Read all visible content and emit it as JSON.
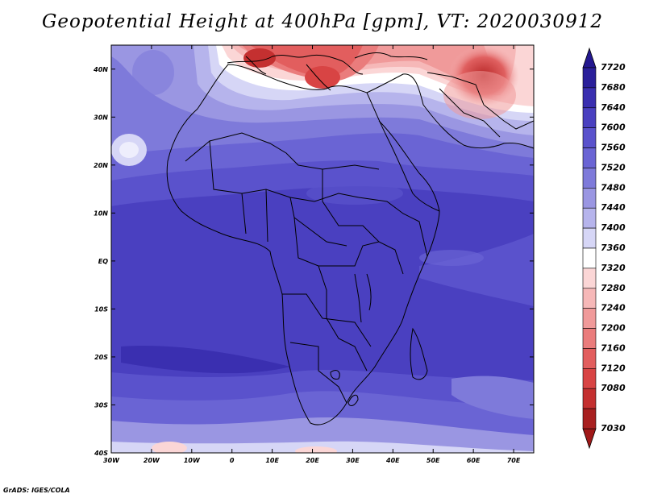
{
  "title": "Geopotential Height at 400hPa [gpm], VT: 2020030912",
  "footer": "GrADS: IGES/COLA",
  "map": {
    "lon_range": [
      -30,
      75
    ],
    "lat_range": [
      -40,
      45
    ],
    "lat_ticks": [
      {
        "value": 40,
        "label": "40N"
      },
      {
        "value": 30,
        "label": "30N"
      },
      {
        "value": 20,
        "label": "20N"
      },
      {
        "value": 10,
        "label": "10N"
      },
      {
        "value": 0,
        "label": "EQ"
      },
      {
        "value": -10,
        "label": "10S"
      },
      {
        "value": -20,
        "label": "20S"
      },
      {
        "value": -30,
        "label": "30S"
      },
      {
        "value": -40,
        "label": "40S"
      }
    ],
    "lon_ticks": [
      {
        "value": -30,
        "label": "30W"
      },
      {
        "value": -20,
        "label": "20W"
      },
      {
        "value": -10,
        "label": "10W"
      },
      {
        "value": 0,
        "label": "0"
      },
      {
        "value": 10,
        "label": "10E"
      },
      {
        "value": 20,
        "label": "20E"
      },
      {
        "value": 30,
        "label": "30E"
      },
      {
        "value": 40,
        "label": "40E"
      },
      {
        "value": 50,
        "label": "50E"
      },
      {
        "value": 60,
        "label": "60E"
      },
      {
        "value": 70,
        "label": "70E"
      }
    ]
  },
  "colorbar": {
    "levels": [
      {
        "label": "7720",
        "color": "#2a1f9a"
      },
      {
        "label": "7680",
        "color": "#3a2fb0"
      },
      {
        "label": "7640",
        "color": "#4a40c0"
      },
      {
        "label": "7600",
        "color": "#5a52cc"
      },
      {
        "label": "7560",
        "color": "#6a64d4"
      },
      {
        "label": "7520",
        "color": "#7e7ada"
      },
      {
        "label": "7480",
        "color": "#9a96e2"
      },
      {
        "label": "7440",
        "color": "#b6b4ec"
      },
      {
        "label": "7400",
        "color": "#d6d6f6"
      },
      {
        "label": "7360",
        "color": "#ffffff"
      },
      {
        "label": "7320",
        "color": "#fbd6d6"
      },
      {
        "label": "7280",
        "color": "#f6b8b8"
      },
      {
        "label": "7240",
        "color": "#f09a9a"
      },
      {
        "label": "7200",
        "color": "#ea7c7c"
      },
      {
        "label": "7160",
        "color": "#e25e5e"
      },
      {
        "label": "7120",
        "color": "#d84444"
      },
      {
        "label": "7080",
        "color": "#c43030"
      },
      {
        "label": "7030",
        "color": "#a82020"
      }
    ],
    "top_triangle_color": "#241890",
    "bottom_triangle_color": "#a01818"
  }
}
